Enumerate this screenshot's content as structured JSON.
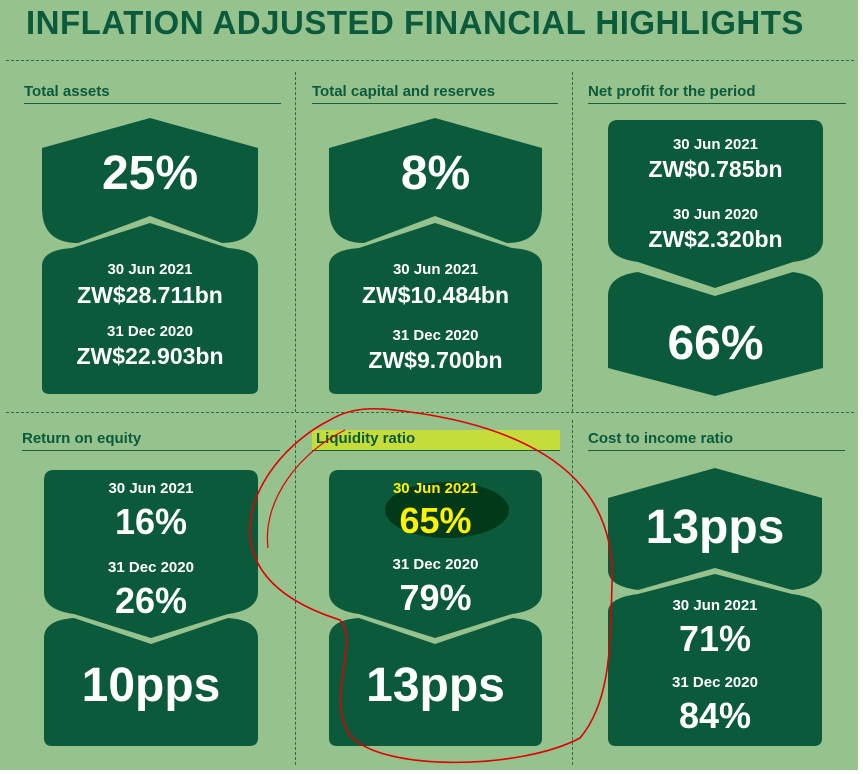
{
  "title": "INFLATION ADJUSTED FINANCIAL HIGHLIGHTS",
  "colors": {
    "background": "#96c28e",
    "panel": "#0b5a3c",
    "band": "#a9d19c",
    "highlight": "#c6dc3a",
    "text": "#0b5a3c",
    "annotation": "#e00000",
    "yellow_text": "#fff200"
  },
  "total_assets": {
    "label": "Total assets",
    "change": "25%",
    "date1": "30 Jun 2021",
    "value1": "ZW$28.711bn",
    "date2": "31 Dec 2020",
    "value2": "ZW$22.903bn"
  },
  "capital": {
    "label": "Total capital and reserves",
    "change": "8%",
    "date1": "30 Jun 2021",
    "value1": "ZW$10.484bn",
    "date2": "31 Dec 2020",
    "value2": "ZW$9.700bn"
  },
  "net_profit": {
    "label": "Net profit for the period",
    "date1": "30 Jun 2021",
    "value1": "ZW$0.785bn",
    "date2": "30 Jun 2020",
    "value2": "ZW$2.320bn",
    "change": "66%"
  },
  "roe": {
    "label": "Return on equity",
    "date1": "30 Jun 2021",
    "value1": "16%",
    "date2": "31 Dec 2020",
    "value2": "26%",
    "change": "10pps"
  },
  "liquidity": {
    "label": "Liquidity ratio",
    "date1": "30 Jun 2021",
    "value1": "65%",
    "date2": "31 Dec 2020",
    "value2": "79%",
    "change": "13pps"
  },
  "cost_income": {
    "label": "Cost to income ratio",
    "change": "13pps",
    "date1": "30 Jun 2021",
    "value1": "71%",
    "date2": "31 Dec 2020",
    "value2": "84%"
  }
}
